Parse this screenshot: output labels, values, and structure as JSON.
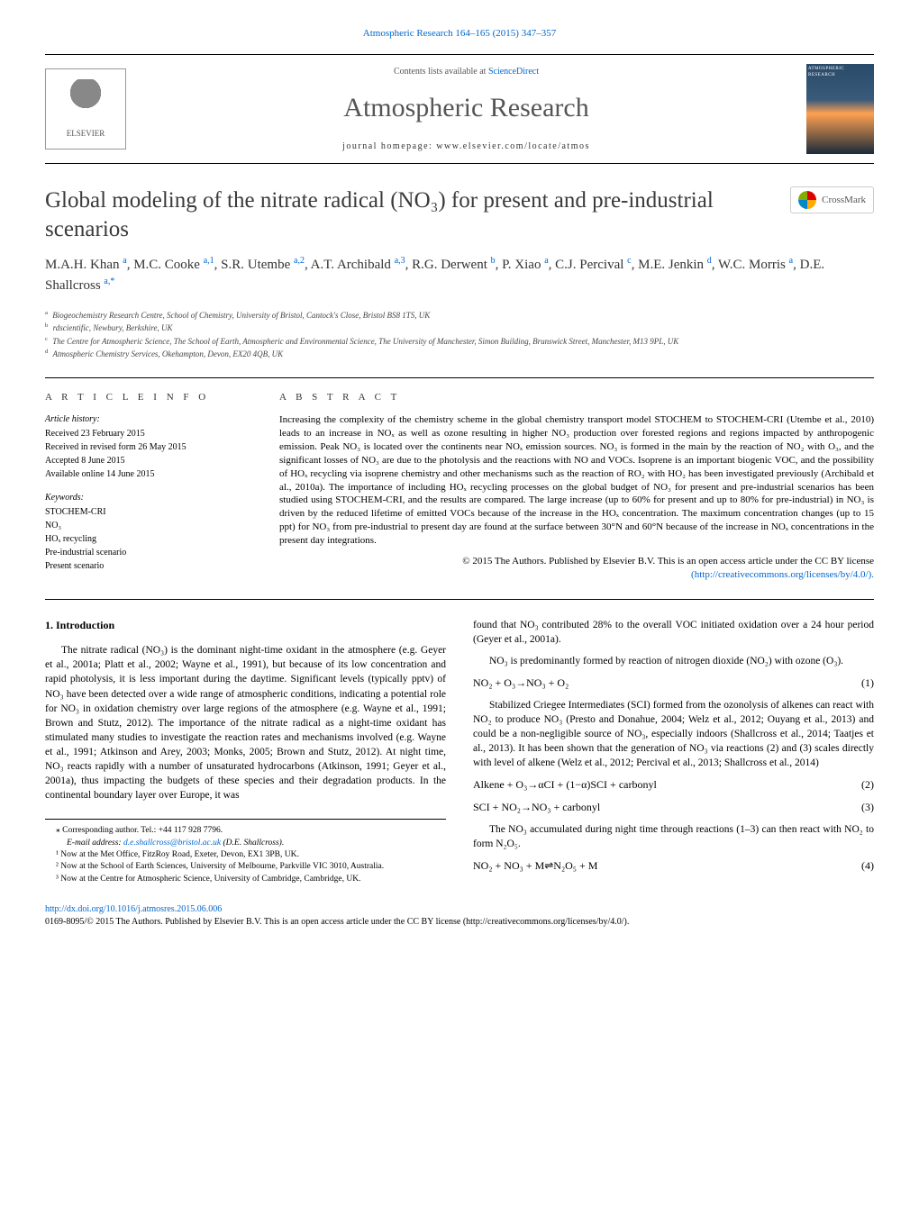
{
  "top_link": "Atmospheric Research 164–165 (2015) 347–357",
  "sciencedirect": {
    "prefix": "Contents lists available at ",
    "link": "ScienceDirect"
  },
  "journal": {
    "name": "Atmospheric Research",
    "homepage": "journal homepage: www.elsevier.com/locate/atmos",
    "cover_title": "ATMOSPHERIC RESEARCH"
  },
  "elsevier": "ELSEVIER",
  "crossmark": "CrossMark",
  "title": "Global modeling of the nitrate radical (NO₃) for present and pre-industrial scenarios",
  "authors_html": "M.A.H. Khan <sup>a</sup>, M.C. Cooke <sup>a,1</sup>, S.R. Utembe <sup>a,2</sup>, A.T. Archibald <sup>a,3</sup>, R.G. Derwent <sup>b</sup>, P. Xiao <sup>a</sup>, C.J. Percival <sup>c</sup>, M.E. Jenkin <sup>d</sup>, W.C. Morris <sup>a</sup>, D.E. Shallcross <sup>a,*</sup>",
  "affiliations": [
    {
      "sup": "a",
      "text": "Biogeochemistry Research Centre, School of Chemistry, University of Bristol, Cantock's Close, Bristol BS8 1TS, UK"
    },
    {
      "sup": "b",
      "text": "rdscientific, Newbury, Berkshire, UK"
    },
    {
      "sup": "c",
      "text": "The Centre for Atmospheric Science, The School of Earth, Atmospheric and Environmental Science, The University of Manchester, Simon Building, Brunswick Street, Manchester, M13 9PL, UK"
    },
    {
      "sup": "d",
      "text": "Atmospheric Chemistry Services, Okehampton, Devon, EX20 4QB, UK"
    }
  ],
  "article_info": {
    "header": "A R T I C L E   I N F O",
    "history_label": "Article history:",
    "history": [
      "Received 23 February 2015",
      "Received in revised form 26 May 2015",
      "Accepted 8 June 2015",
      "Available online 14 June 2015"
    ],
    "keywords_label": "Keywords:",
    "keywords": [
      "STOCHEM-CRI",
      "NO₃",
      "HOₓ recycling",
      "Pre-industrial scenario",
      "Present scenario"
    ]
  },
  "abstract": {
    "header": "A B S T R A C T",
    "text": "Increasing the complexity of the chemistry scheme in the global chemistry transport model STOCHEM to STOCHEM-CRI (Utembe et al., 2010) leads to an increase in NOₓ as well as ozone resulting in higher NO₃ production over forested regions and regions impacted by anthropogenic emission. Peak NO₃ is located over the continents near NOₓ emission sources. NO₃ is formed in the main by the reaction of NO₂ with O₃, and the significant losses of NO₃ are due to the photolysis and the reactions with NO and VOCs. Isoprene is an important biogenic VOC, and the possibility of HOₓ recycling via isoprene chemistry and other mechanisms such as the reaction of RO₂ with HO₂ has been investigated previously (Archibald et al., 2010a). The importance of including HOₓ recycling processes on the global budget of NO₃ for present and pre-industrial scenarios has been studied using STOCHEM-CRI, and the results are compared. The large increase (up to 60% for present and up to 80% for pre-industrial) in NO₃ is driven by the reduced lifetime of emitted VOCs because of the increase in the HOₓ concentration. The maximum concentration changes (up to 15 ppt) for NO₃ from pre-industrial to present day are found at the surface between 30°N and 60°N because of the increase in NOₓ concentrations in the present day integrations.",
    "copyright": "© 2015 The Authors. Published by Elsevier B.V. This is an open access article under the CC BY license",
    "license_url": "(http://creativecommons.org/licenses/by/4.0/)."
  },
  "body": {
    "intro_heading": "1. Introduction",
    "left_paragraphs": [
      "The nitrate radical (NO₃) is the dominant night-time oxidant in the atmosphere (e.g. Geyer et al., 2001a; Platt et al., 2002; Wayne et al., 1991), but because of its low concentration and rapid photolysis, it is less important during the daytime. Significant levels (typically pptv) of NO₃ have been detected over a wide range of atmospheric conditions, indicating a potential role for NO₃ in oxidation chemistry over large regions of the atmosphere (e.g. Wayne et al., 1991; Brown and Stutz, 2012). The importance of the nitrate radical as a night-time oxidant has stimulated many studies to investigate the reaction rates and mechanisms involved (e.g. Wayne et al., 1991; Atkinson and Arey, 2003; Monks, 2005; Brown and Stutz, 2012). At night time, NO₃ reacts rapidly with a number of unsaturated hydrocarbons (Atkinson, 1991; Geyer et al., 2001a), thus impacting the budgets of these species and their degradation products. In the continental boundary layer over Europe, it was"
    ],
    "right_paragraphs": [
      "found that NO₃ contributed 28% to the overall VOC initiated oxidation over a 24 hour period (Geyer et al., 2001a).",
      "NO₃ is predominantly formed by reaction of nitrogen dioxide (NO₂) with ozone (O₃)."
    ],
    "right_paragraphs_2": [
      "Stabilized Criegee Intermediates (SCI) formed from the ozonolysis of alkenes can react with NO₂ to produce NO₃ (Presto and Donahue, 2004; Welz et al., 2012; Ouyang et al., 2013) and could be a non-negligible source of NO₃, especially indoors (Shallcross et al., 2014; Taatjes et al., 2013). It has been shown that the generation of NO₃ via reactions (2) and (3) scales directly with level of alkene (Welz et al., 2012; Percival et al., 2013; Shallcross et al., 2014)"
    ],
    "right_paragraphs_3": [
      "The NO₃ accumulated during night time through reactions (1–3) can then react with NO₂ to form N₂O₅."
    ],
    "equations": [
      {
        "text": "NO₂ + O₃→NO₃ + O₂",
        "num": "(1)"
      },
      {
        "text": "Alkene + O₃→αCI + (1−α)SCI + carbonyl",
        "num": "(2)"
      },
      {
        "text": "SCI + NO₂→NO₃ + carbonyl",
        "num": "(3)"
      },
      {
        "text": "NO₂ + NO₃ + M⇌N₂O₅ + M",
        "num": "(4)"
      }
    ]
  },
  "footnotes": {
    "corresponding": "⁎ Corresponding author. Tel.: +44 117 928 7796.",
    "email_label": "E-mail address: ",
    "email": "d.e.shallcross@bristol.ac.uk",
    "email_suffix": " (D.E. Shallcross).",
    "notes": [
      "¹ Now at the Met Office, FitzRoy Road, Exeter, Devon, EX1 3PB, UK.",
      "² Now at the School of Earth Sciences, University of Melbourne, Parkville VIC 3010, Australia.",
      "³ Now at the Centre for Atmospheric Science, University of Cambridge, Cambridge, UK."
    ]
  },
  "doi": "http://dx.doi.org/10.1016/j.atmosres.2015.06.006",
  "license_footer": "0169-8095/© 2015 The Authors. Published by Elsevier B.V. This is an open access article under the CC BY license (http://creativecommons.org/licenses/by/4.0/)."
}
